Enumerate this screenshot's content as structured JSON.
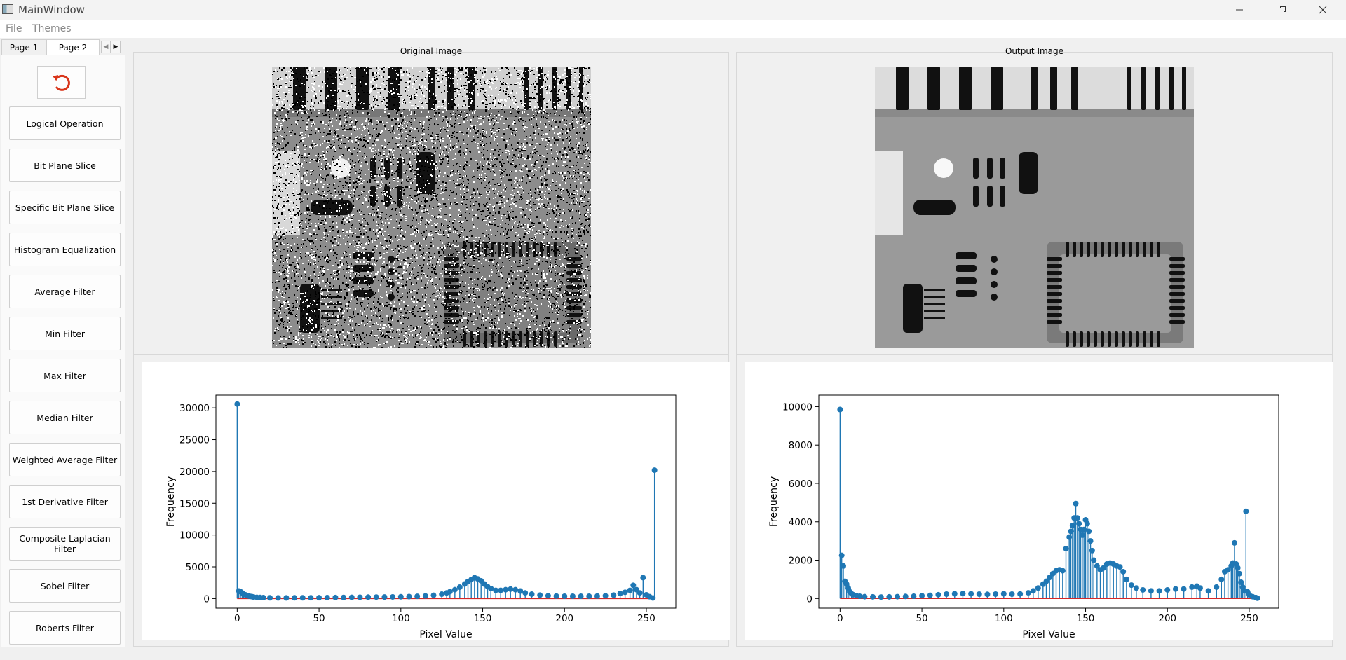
{
  "window": {
    "title": "MainWindow"
  },
  "menu": [
    "File",
    "Themes"
  ],
  "tabs": [
    "Page 1",
    "Page 2"
  ],
  "buttons": [
    "Logical Operation",
    "Bit Plane Slice",
    "Specific Bit Plane Slice",
    "Histogram Equalization",
    "Average Filter",
    "Min Filter",
    "Max Filter",
    "Median Filter",
    "Weighted Average Filter",
    "1st Derivative Filter",
    "Composite Laplacian Filter",
    "Sobel Filter",
    "Roberts Filter"
  ],
  "panels": {
    "original_title": "Original Image",
    "output_title": "Output Image"
  },
  "colors": {
    "stem": "#1f77b4",
    "baseline": "#d62728",
    "undo_icon": "#d9361b"
  },
  "icons": {
    "undo": "undo-arrow-icon",
    "minimize": "minimize-icon",
    "restore": "restore-icon",
    "close": "close-icon",
    "tab_left": "tab-scroll-left-icon",
    "tab_right": "tab-scroll-right-icon"
  },
  "chart_data": [
    {
      "type": "stem",
      "xlabel": "Pixel Value",
      "ylabel": "Frequency",
      "xlim": [
        -13,
        268
      ],
      "ylim": [
        -1500,
        32000
      ],
      "xticks": [
        0,
        50,
        100,
        150,
        200,
        250
      ],
      "yticks": [
        0,
        5000,
        10000,
        15000,
        20000,
        25000,
        30000
      ],
      "points": [
        [
          0,
          30600
        ],
        [
          1,
          1200
        ],
        [
          2,
          1100
        ],
        [
          3,
          900
        ],
        [
          4,
          700
        ],
        [
          5,
          600
        ],
        [
          6,
          500
        ],
        [
          7,
          400
        ],
        [
          8,
          350
        ],
        [
          9,
          300
        ],
        [
          10,
          250
        ],
        [
          12,
          200
        ],
        [
          14,
          180
        ],
        [
          16,
          150
        ],
        [
          20,
          120
        ],
        [
          25,
          110
        ],
        [
          30,
          110
        ],
        [
          35,
          120
        ],
        [
          40,
          120
        ],
        [
          45,
          130
        ],
        [
          50,
          140
        ],
        [
          55,
          150
        ],
        [
          60,
          170
        ],
        [
          65,
          180
        ],
        [
          70,
          200
        ],
        [
          75,
          210
        ],
        [
          80,
          230
        ],
        [
          85,
          240
        ],
        [
          90,
          250
        ],
        [
          95,
          270
        ],
        [
          100,
          290
        ],
        [
          105,
          320
        ],
        [
          110,
          360
        ],
        [
          115,
          420
        ],
        [
          120,
          520
        ],
        [
          125,
          700
        ],
        [
          128,
          900
        ],
        [
          130,
          1100
        ],
        [
          133,
          1400
        ],
        [
          136,
          1800
        ],
        [
          139,
          2300
        ],
        [
          141,
          2700
        ],
        [
          143,
          3000
        ],
        [
          145,
          3300
        ],
        [
          147,
          3100
        ],
        [
          149,
          2800
        ],
        [
          151,
          2300
        ],
        [
          153,
          1900
        ],
        [
          155,
          1600
        ],
        [
          158,
          1300
        ],
        [
          161,
          1300
        ],
        [
          164,
          1400
        ],
        [
          167,
          1500
        ],
        [
          170,
          1400
        ],
        [
          173,
          1200
        ],
        [
          176,
          900
        ],
        [
          180,
          700
        ],
        [
          185,
          550
        ],
        [
          190,
          450
        ],
        [
          195,
          400
        ],
        [
          200,
          380
        ],
        [
          205,
          380
        ],
        [
          210,
          370
        ],
        [
          215,
          380
        ],
        [
          220,
          400
        ],
        [
          225,
          450
        ],
        [
          230,
          550
        ],
        [
          234,
          800
        ],
        [
          237,
          1000
        ],
        [
          240,
          1300
        ],
        [
          242,
          2100
        ],
        [
          244,
          1400
        ],
        [
          246,
          900
        ],
        [
          248,
          3300
        ],
        [
          250,
          600
        ],
        [
          252,
          300
        ],
        [
          254,
          100
        ],
        [
          255,
          20200
        ]
      ]
    },
    {
      "type": "stem",
      "xlabel": "Pixel Value",
      "ylabel": "Frequency",
      "xlim": [
        -13,
        268
      ],
      "ylim": [
        -500,
        10600
      ],
      "xticks": [
        0,
        50,
        100,
        150,
        200,
        250
      ],
      "yticks": [
        0,
        2000,
        4000,
        6000,
        8000,
        10000
      ],
      "points": [
        [
          0,
          9850
        ],
        [
          1,
          2250
        ],
        [
          2,
          1700
        ],
        [
          3,
          900
        ],
        [
          4,
          750
        ],
        [
          5,
          550
        ],
        [
          6,
          350
        ],
        [
          7,
          250
        ],
        [
          8,
          200
        ],
        [
          10,
          150
        ],
        [
          12,
          120
        ],
        [
          15,
          100
        ],
        [
          20,
          90
        ],
        [
          25,
          80
        ],
        [
          30,
          90
        ],
        [
          35,
          100
        ],
        [
          40,
          110
        ],
        [
          45,
          120
        ],
        [
          50,
          150
        ],
        [
          55,
          170
        ],
        [
          60,
          200
        ],
        [
          65,
          230
        ],
        [
          70,
          250
        ],
        [
          75,
          260
        ],
        [
          80,
          250
        ],
        [
          85,
          230
        ],
        [
          90,
          220
        ],
        [
          95,
          230
        ],
        [
          100,
          250
        ],
        [
          105,
          230
        ],
        [
          110,
          240
        ],
        [
          115,
          300
        ],
        [
          118,
          400
        ],
        [
          121,
          550
        ],
        [
          124,
          750
        ],
        [
          126,
          900
        ],
        [
          128,
          1100
        ],
        [
          130,
          1300
        ],
        [
          132,
          1450
        ],
        [
          134,
          1500
        ],
        [
          136,
          1450
        ],
        [
          138,
          2600
        ],
        [
          140,
          3200
        ],
        [
          141,
          3500
        ],
        [
          142,
          3800
        ],
        [
          143,
          4200
        ],
        [
          144,
          4950
        ],
        [
          145,
          4200
        ],
        [
          146,
          3900
        ],
        [
          147,
          3600
        ],
        [
          148,
          3300
        ],
        [
          149,
          3600
        ],
        [
          150,
          4100
        ],
        [
          151,
          3900
        ],
        [
          152,
          3500
        ],
        [
          153,
          3000
        ],
        [
          154,
          2500
        ],
        [
          155,
          2000
        ],
        [
          157,
          1700
        ],
        [
          159,
          1500
        ],
        [
          161,
          1600
        ],
        [
          163,
          1800
        ],
        [
          165,
          1850
        ],
        [
          167,
          1800
        ],
        [
          169,
          1700
        ],
        [
          171,
          1650
        ],
        [
          173,
          1400
        ],
        [
          175,
          1000
        ],
        [
          178,
          700
        ],
        [
          181,
          550
        ],
        [
          185,
          450
        ],
        [
          190,
          400
        ],
        [
          195,
          400
        ],
        [
          200,
          450
        ],
        [
          205,
          500
        ],
        [
          210,
          500
        ],
        [
          215,
          600
        ],
        [
          218,
          650
        ],
        [
          220,
          550
        ],
        [
          225,
          400
        ],
        [
          230,
          600
        ],
        [
          233,
          1000
        ],
        [
          235,
          1400
        ],
        [
          237,
          1500
        ],
        [
          239,
          1700
        ],
        [
          240,
          1850
        ],
        [
          241,
          2900
        ],
        [
          242,
          1800
        ],
        [
          243,
          1600
        ],
        [
          244,
          1300
        ],
        [
          245,
          850
        ],
        [
          246,
          600
        ],
        [
          247,
          400
        ],
        [
          248,
          4550
        ],
        [
          249,
          350
        ],
        [
          250,
          200
        ],
        [
          252,
          100
        ],
        [
          254,
          50
        ],
        [
          255,
          20
        ]
      ]
    }
  ]
}
